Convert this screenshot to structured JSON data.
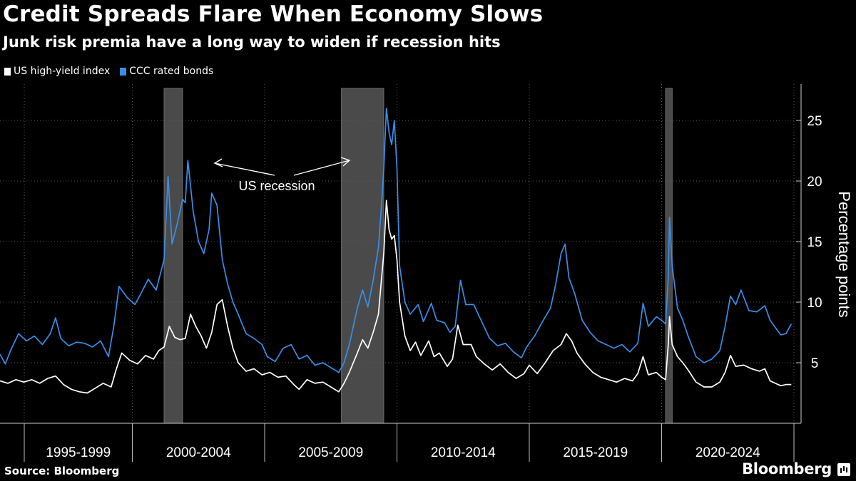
{
  "chart_data": {
    "type": "line",
    "title": "Credit Spreads Flare When Economy Slows",
    "subtitle": "Junk risk premia have a long way to widen if recession hits",
    "ylabel": "Percentage points",
    "ylim": [
      0,
      28
    ],
    "yticks": [
      5,
      10,
      15,
      20,
      25
    ],
    "xlim": [
      1995.0,
      2025.0
    ],
    "x_tick_labels": [
      "1995-1999",
      "2000-2004",
      "2005-2009",
      "2010-2014",
      "2015-2019",
      "2020-2024"
    ],
    "x_tick_positions": [
      1995,
      2000,
      2005,
      2010,
      2015,
      2020,
      2025
    ],
    "grid": true,
    "legend_placement": "top-left",
    "recessions": [
      {
        "start": 2001.2,
        "end": 2001.9
      },
      {
        "start": 2007.9,
        "end": 2009.5
      },
      {
        "start": 2020.15,
        "end": 2020.4
      }
    ],
    "annotation": "US recession",
    "series": [
      {
        "name": "US high-yield index",
        "color": "#ffffff",
        "points": [
          [
            1995.0,
            3.5
          ],
          [
            1995.3,
            3.3
          ],
          [
            1995.6,
            3.6
          ],
          [
            1995.9,
            3.4
          ],
          [
            1996.2,
            3.6
          ],
          [
            1996.5,
            3.3
          ],
          [
            1996.8,
            3.7
          ],
          [
            1997.1,
            3.9
          ],
          [
            1997.4,
            3.2
          ],
          [
            1997.7,
            2.8
          ],
          [
            1998.0,
            2.6
          ],
          [
            1998.3,
            2.5
          ],
          [
            1998.6,
            2.9
          ],
          [
            1998.9,
            3.3
          ],
          [
            1999.2,
            3.0
          ],
          [
            1999.4,
            4.5
          ],
          [
            1999.6,
            5.8
          ],
          [
            1999.9,
            5.2
          ],
          [
            2000.2,
            4.9
          ],
          [
            2000.5,
            5.6
          ],
          [
            2000.8,
            5.3
          ],
          [
            2001.0,
            6.0
          ],
          [
            2001.2,
            6.3
          ],
          [
            2001.4,
            8.0
          ],
          [
            2001.6,
            7.1
          ],
          [
            2001.8,
            6.9
          ],
          [
            2002.0,
            7.0
          ],
          [
            2002.2,
            9.0
          ],
          [
            2002.4,
            8.0
          ],
          [
            2002.6,
            7.2
          ],
          [
            2002.8,
            6.2
          ],
          [
            2003.0,
            7.5
          ],
          [
            2003.2,
            9.8
          ],
          [
            2003.4,
            10.2
          ],
          [
            2003.6,
            8.0
          ],
          [
            2003.8,
            6.2
          ],
          [
            2004.0,
            5.0
          ],
          [
            2004.3,
            4.3
          ],
          [
            2004.6,
            4.5
          ],
          [
            2004.9,
            4.0
          ],
          [
            2005.2,
            4.2
          ],
          [
            2005.5,
            3.8
          ],
          [
            2005.8,
            3.9
          ],
          [
            2006.1,
            3.2
          ],
          [
            2006.3,
            2.8
          ],
          [
            2006.6,
            3.6
          ],
          [
            2006.9,
            3.3
          ],
          [
            2007.2,
            3.4
          ],
          [
            2007.5,
            3.0
          ],
          [
            2007.8,
            2.6
          ],
          [
            2008.0,
            3.3
          ],
          [
            2008.2,
            4.2
          ],
          [
            2008.5,
            5.8
          ],
          [
            2008.7,
            6.9
          ],
          [
            2008.9,
            6.2
          ],
          [
            2009.1,
            7.5
          ],
          [
            2009.3,
            9.0
          ],
          [
            2009.4,
            11.5
          ],
          [
            2009.5,
            14.0
          ],
          [
            2009.6,
            18.4
          ],
          [
            2009.7,
            16.0
          ],
          [
            2009.8,
            15.2
          ],
          [
            2009.9,
            15.5
          ],
          [
            2010.0,
            13.5
          ],
          [
            2010.1,
            10.0
          ],
          [
            2010.3,
            7.2
          ],
          [
            2010.5,
            6.0
          ],
          [
            2010.7,
            6.7
          ],
          [
            2010.9,
            5.6
          ],
          [
            2011.2,
            6.8
          ],
          [
            2011.4,
            5.5
          ],
          [
            2011.6,
            5.8
          ],
          [
            2011.9,
            4.7
          ],
          [
            2012.1,
            5.3
          ],
          [
            2012.3,
            8.1
          ],
          [
            2012.5,
            6.5
          ],
          [
            2012.8,
            6.5
          ],
          [
            2013.0,
            5.5
          ],
          [
            2013.3,
            4.9
          ],
          [
            2013.6,
            4.4
          ],
          [
            2013.9,
            4.9
          ],
          [
            2014.2,
            4.2
          ],
          [
            2014.5,
            3.7
          ],
          [
            2014.8,
            4.1
          ],
          [
            2015.0,
            4.8
          ],
          [
            2015.3,
            4.1
          ],
          [
            2015.6,
            5.0
          ],
          [
            2015.9,
            6.0
          ],
          [
            2016.2,
            6.5
          ],
          [
            2016.4,
            7.4
          ],
          [
            2016.6,
            6.8
          ],
          [
            2016.8,
            5.8
          ],
          [
            2017.1,
            4.9
          ],
          [
            2017.4,
            4.2
          ],
          [
            2017.7,
            3.8
          ],
          [
            2018.0,
            3.6
          ],
          [
            2018.3,
            3.4
          ],
          [
            2018.6,
            3.7
          ],
          [
            2018.9,
            3.5
          ],
          [
            2019.1,
            4.1
          ],
          [
            2019.3,
            5.5
          ],
          [
            2019.5,
            4.0
          ],
          [
            2019.8,
            4.2
          ],
          [
            2020.0,
            3.8
          ],
          [
            2020.15,
            3.6
          ],
          [
            2020.25,
            6.5
          ],
          [
            2020.3,
            8.8
          ],
          [
            2020.4,
            6.5
          ],
          [
            2020.6,
            5.5
          ],
          [
            2020.8,
            5.0
          ],
          [
            2021.0,
            4.4
          ],
          [
            2021.3,
            3.4
          ],
          [
            2021.6,
            3.0
          ],
          [
            2021.9,
            3.0
          ],
          [
            2022.2,
            3.4
          ],
          [
            2022.4,
            4.2
          ],
          [
            2022.6,
            5.6
          ],
          [
            2022.8,
            4.7
          ],
          [
            2023.1,
            4.8
          ],
          [
            2023.4,
            4.5
          ],
          [
            2023.7,
            4.3
          ],
          [
            2023.9,
            4.5
          ],
          [
            2024.1,
            3.5
          ],
          [
            2024.3,
            3.3
          ],
          [
            2024.5,
            3.1
          ],
          [
            2024.7,
            3.2
          ],
          [
            2024.9,
            3.2
          ]
        ]
      },
      {
        "name": "CCC rated bonds",
        "color": "#3a8ee8",
        "points": [
          [
            1995.0,
            5.7
          ],
          [
            1995.2,
            4.9
          ],
          [
            1995.4,
            6.0
          ],
          [
            1995.7,
            7.4
          ],
          [
            1996.0,
            6.8
          ],
          [
            1996.3,
            7.2
          ],
          [
            1996.6,
            6.5
          ],
          [
            1996.9,
            7.4
          ],
          [
            1997.1,
            8.7
          ],
          [
            1997.3,
            7.0
          ],
          [
            1997.6,
            6.4
          ],
          [
            1997.9,
            6.7
          ],
          [
            1998.2,
            6.6
          ],
          [
            1998.5,
            6.3
          ],
          [
            1998.8,
            6.8
          ],
          [
            1999.1,
            5.5
          ],
          [
            1999.3,
            8.0
          ],
          [
            1999.5,
            11.3
          ],
          [
            1999.8,
            10.4
          ],
          [
            2000.1,
            9.8
          ],
          [
            2000.3,
            10.6
          ],
          [
            2000.6,
            11.9
          ],
          [
            2000.9,
            11.0
          ],
          [
            2001.2,
            13.5
          ],
          [
            2001.35,
            20.4
          ],
          [
            2001.5,
            14.8
          ],
          [
            2001.7,
            16.5
          ],
          [
            2001.9,
            18.5
          ],
          [
            2002.0,
            18.2
          ],
          [
            2002.1,
            21.7
          ],
          [
            2002.3,
            17.5
          ],
          [
            2002.5,
            15.0
          ],
          [
            2002.7,
            14.0
          ],
          [
            2002.9,
            16.0
          ],
          [
            2003.0,
            19.0
          ],
          [
            2003.2,
            18.0
          ],
          [
            2003.4,
            13.5
          ],
          [
            2003.6,
            11.5
          ],
          [
            2003.8,
            10.0
          ],
          [
            2004.0,
            9.0
          ],
          [
            2004.3,
            7.4
          ],
          [
            2004.6,
            7.0
          ],
          [
            2004.9,
            6.5
          ],
          [
            2005.1,
            5.5
          ],
          [
            2005.4,
            5.1
          ],
          [
            2005.7,
            6.2
          ],
          [
            2006.0,
            6.5
          ],
          [
            2006.3,
            5.3
          ],
          [
            2006.6,
            5.6
          ],
          [
            2006.9,
            4.8
          ],
          [
            2007.2,
            5.0
          ],
          [
            2007.5,
            4.6
          ],
          [
            2007.8,
            4.2
          ],
          [
            2008.0,
            5.0
          ],
          [
            2008.2,
            6.5
          ],
          [
            2008.5,
            9.5
          ],
          [
            2008.7,
            11.0
          ],
          [
            2008.9,
            9.6
          ],
          [
            2009.1,
            11.8
          ],
          [
            2009.3,
            14.5
          ],
          [
            2009.4,
            17.5
          ],
          [
            2009.5,
            21.0
          ],
          [
            2009.6,
            26.0
          ],
          [
            2009.7,
            24.0
          ],
          [
            2009.8,
            23.0
          ],
          [
            2009.9,
            25.0
          ],
          [
            2010.0,
            21.0
          ],
          [
            2010.1,
            13.0
          ],
          [
            2010.3,
            10.0
          ],
          [
            2010.5,
            9.0
          ],
          [
            2010.8,
            9.8
          ],
          [
            2011.0,
            8.4
          ],
          [
            2011.3,
            9.9
          ],
          [
            2011.5,
            8.5
          ],
          [
            2011.8,
            8.3
          ],
          [
            2012.0,
            7.5
          ],
          [
            2012.2,
            8.0
          ],
          [
            2012.4,
            11.8
          ],
          [
            2012.6,
            9.8
          ],
          [
            2012.9,
            9.8
          ],
          [
            2013.2,
            8.4
          ],
          [
            2013.5,
            7.0
          ],
          [
            2013.8,
            6.4
          ],
          [
            2014.1,
            6.6
          ],
          [
            2014.4,
            5.9
          ],
          [
            2014.7,
            5.4
          ],
          [
            2014.9,
            6.3
          ],
          [
            2015.2,
            7.2
          ],
          [
            2015.5,
            8.4
          ],
          [
            2015.8,
            9.5
          ],
          [
            2016.0,
            11.5
          ],
          [
            2016.2,
            14.0
          ],
          [
            2016.35,
            14.8
          ],
          [
            2016.5,
            12.0
          ],
          [
            2016.7,
            10.8
          ],
          [
            2017.0,
            8.5
          ],
          [
            2017.3,
            7.5
          ],
          [
            2017.6,
            6.8
          ],
          [
            2017.9,
            6.5
          ],
          [
            2018.2,
            6.2
          ],
          [
            2018.5,
            6.5
          ],
          [
            2018.8,
            5.9
          ],
          [
            2019.1,
            6.6
          ],
          [
            2019.3,
            9.9
          ],
          [
            2019.5,
            8.0
          ],
          [
            2019.8,
            8.8
          ],
          [
            2020.0,
            8.5
          ],
          [
            2020.15,
            8.2
          ],
          [
            2020.25,
            12.0
          ],
          [
            2020.3,
            17.0
          ],
          [
            2020.4,
            13.0
          ],
          [
            2020.6,
            9.5
          ],
          [
            2020.8,
            8.5
          ],
          [
            2021.0,
            7.2
          ],
          [
            2021.3,
            5.5
          ],
          [
            2021.6,
            5.0
          ],
          [
            2021.9,
            5.3
          ],
          [
            2022.2,
            6.0
          ],
          [
            2022.4,
            8.0
          ],
          [
            2022.6,
            10.5
          ],
          [
            2022.8,
            9.8
          ],
          [
            2023.0,
            11.0
          ],
          [
            2023.3,
            9.3
          ],
          [
            2023.6,
            9.2
          ],
          [
            2023.9,
            9.7
          ],
          [
            2024.1,
            8.5
          ],
          [
            2024.3,
            7.9
          ],
          [
            2024.5,
            7.3
          ],
          [
            2024.7,
            7.4
          ],
          [
            2024.9,
            8.2
          ]
        ]
      }
    ]
  },
  "source": "Source: Bloomberg",
  "brand": "Bloomberg"
}
